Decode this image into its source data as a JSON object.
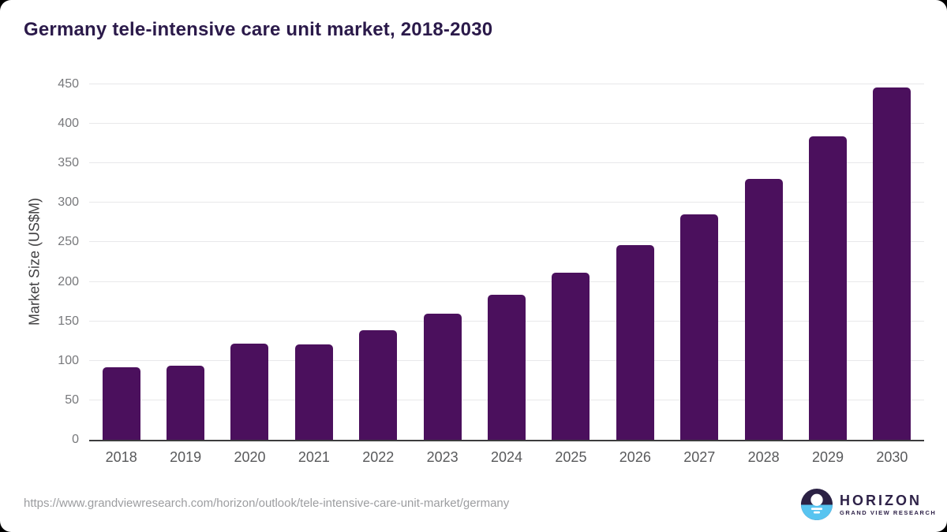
{
  "page": {
    "background": "#000000",
    "card_background": "#ffffff"
  },
  "header": {
    "title": "Germany tele-intensive care unit market, 2018-2030",
    "title_color": "#2b1a4a"
  },
  "chart_data": {
    "type": "bar",
    "title": "Germany tele-intensive care unit market, 2018-2030",
    "categories": [
      "2018",
      "2019",
      "2020",
      "2021",
      "2022",
      "2023",
      "2024",
      "2025",
      "2026",
      "2027",
      "2028",
      "2029",
      "2030"
    ],
    "values": [
      92,
      94,
      122,
      121,
      139,
      160,
      184,
      212,
      246,
      285,
      330,
      384,
      446
    ],
    "xlabel": "",
    "ylabel": "Market Size (US$M)",
    "ylim": [
      0,
      450
    ],
    "yticks": [
      0,
      50,
      100,
      150,
      200,
      250,
      300,
      350,
      400,
      450
    ],
    "grid": true,
    "legend_position": "none",
    "bar_color": "#4b105d",
    "gridline_color": "#e8e8ea",
    "axis_line_color": "#3c3c3e",
    "tick_label_color": "#77787b",
    "category_label_color": "#58595b",
    "ylabel_color": "#414042"
  },
  "footer": {
    "source_url": "https://www.grandviewresearch.com/horizon/outlook/tele-intensive-care-unit-market/germany",
    "logo": {
      "brand": "HORIZON",
      "tagline": "GRAND VIEW RESEARCH",
      "icon_top_color": "#2b2144",
      "icon_bottom_color": "#58c4f0",
      "text_color": "#2e2248"
    }
  }
}
